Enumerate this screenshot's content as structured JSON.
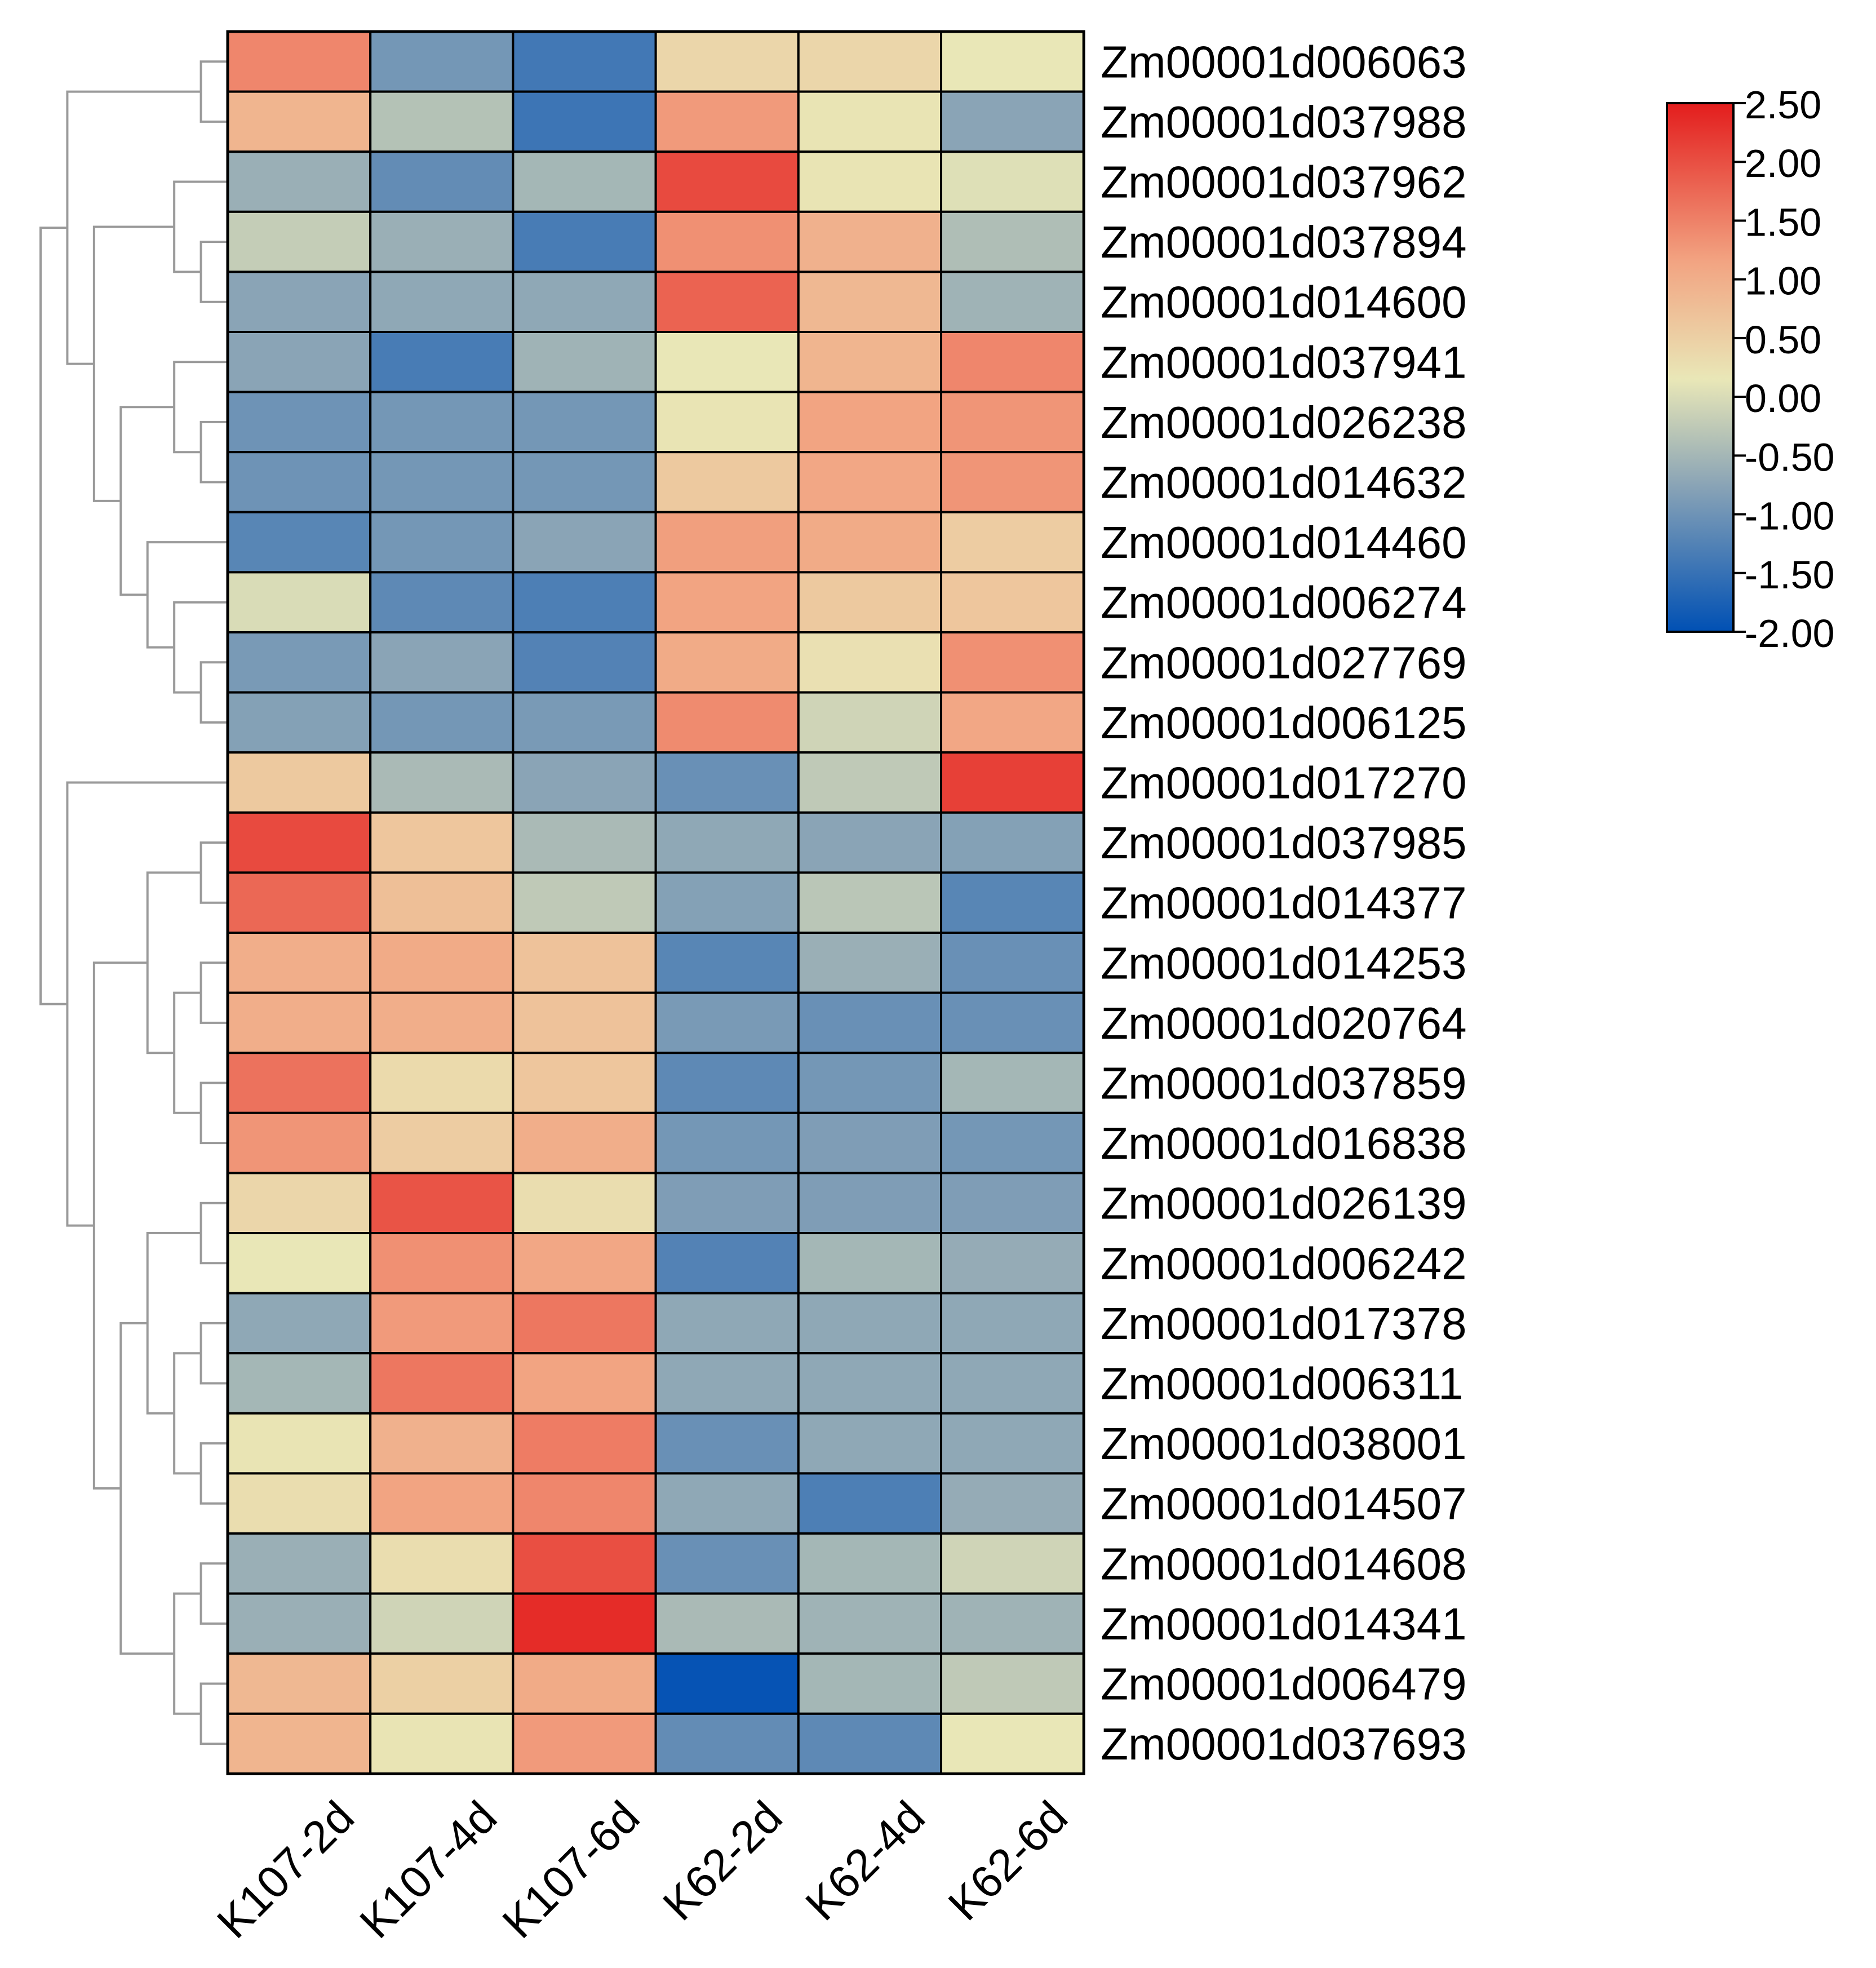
{
  "chart_data": {
    "type": "heatmap",
    "title": "",
    "xlabel": "",
    "ylabel": "",
    "columns": [
      "K107-2d",
      "K107-4d",
      "K107-6d",
      "K62-2d",
      "K62-4d",
      "K62-6d"
    ],
    "rows": [
      "Zm00001d006063",
      "Zm00001d037988",
      "Zm00001d037962",
      "Zm00001d037894",
      "Zm00001d014600",
      "Zm00001d037941",
      "Zm00001d026238",
      "Zm00001d014632",
      "Zm00001d014460",
      "Zm00001d006274",
      "Zm00001d027769",
      "Zm00001d006125",
      "Zm00001d017270",
      "Zm00001d037985",
      "Zm00001d014377",
      "Zm00001d014253",
      "Zm00001d020764",
      "Zm00001d037859",
      "Zm00001d016838",
      "Zm00001d026139",
      "Zm00001d006242",
      "Zm00001d017378",
      "Zm00001d006311",
      "Zm00001d038001",
      "Zm00001d014507",
      "Zm00001d014608",
      "Zm00001d014341",
      "Zm00001d006479",
      "Zm00001d037693"
    ],
    "values": [
      [
        1.45,
        -0.95,
        -1.4,
        0.4,
        0.4,
        0.15
      ],
      [
        0.9,
        -0.35,
        -1.45,
        1.25,
        0.2,
        -0.75
      ],
      [
        -0.6,
        -1.1,
        -0.5,
        2.05,
        0.2,
        0.05
      ],
      [
        -0.2,
        -0.6,
        -1.35,
        1.35,
        0.95,
        -0.4
      ],
      [
        -0.75,
        -0.7,
        -0.7,
        1.8,
        0.85,
        -0.55
      ],
      [
        -0.75,
        -1.35,
        -0.55,
        0.15,
        0.9,
        1.45
      ],
      [
        -1.0,
        -0.95,
        -0.95,
        0.2,
        1.15,
        1.3
      ],
      [
        -1.0,
        -0.95,
        -0.95,
        0.6,
        1.1,
        1.3
      ],
      [
        -1.2,
        -0.95,
        -0.75,
        1.2,
        1.05,
        0.55
      ],
      [
        0.0,
        -1.15,
        -1.3,
        1.15,
        0.6,
        0.65
      ],
      [
        -0.9,
        -0.75,
        -1.25,
        1.05,
        0.25,
        1.35
      ],
      [
        -0.8,
        -0.95,
        -0.9,
        1.4,
        -0.1,
        1.1
      ],
      [
        0.6,
        -0.45,
        -0.75,
        -1.05,
        -0.25,
        2.15
      ],
      [
        2.05,
        0.65,
        -0.45,
        -0.7,
        -0.75,
        -0.8
      ],
      [
        1.75,
        0.75,
        -0.25,
        -0.8,
        -0.3,
        -1.2
      ],
      [
        1.0,
        1.05,
        0.7,
        -1.2,
        -0.6,
        -1.05
      ],
      [
        1.0,
        1.0,
        0.7,
        -0.9,
        -1.05,
        -1.05
      ],
      [
        1.65,
        0.35,
        0.65,
        -1.15,
        -0.95,
        -0.5
      ],
      [
        1.3,
        0.55,
        1.0,
        -0.95,
        -0.85,
        -0.95
      ],
      [
        0.4,
        1.95,
        0.3,
        -0.85,
        -0.85,
        -0.85
      ],
      [
        0.15,
        1.35,
        1.1,
        -1.25,
        -0.5,
        -0.65
      ],
      [
        -0.7,
        1.25,
        1.6,
        -0.7,
        -0.7,
        -0.7
      ],
      [
        -0.5,
        1.6,
        1.15,
        -0.7,
        -0.7,
        -0.7
      ],
      [
        0.2,
        0.95,
        1.55,
        -1.05,
        -0.7,
        -0.7
      ],
      [
        0.3,
        1.15,
        1.45,
        -0.7,
        -1.3,
        -0.65
      ],
      [
        -0.6,
        0.3,
        2.0,
        -1.05,
        -0.5,
        -0.1
      ],
      [
        -0.6,
        -0.1,
        2.35,
        -0.45,
        -0.55,
        -0.55
      ],
      [
        0.85,
        0.5,
        1.05,
        -1.95,
        -0.5,
        -0.25
      ],
      [
        0.9,
        0.2,
        1.25,
        -1.1,
        -1.15,
        0.15
      ]
    ],
    "legend": {
      "position": "top-right",
      "range": [
        -2.0,
        2.5
      ],
      "ticks": [
        "2.50",
        "2.00",
        "1.50",
        "1.00",
        "0.50",
        "0.00",
        "-0.50",
        "-1.00",
        "-1.50",
        "-2.00"
      ],
      "colors": [
        "#0050b4",
        "#8aa4b6",
        "#e9e7b7",
        "#f2a482",
        "#e31d1d"
      ]
    },
    "dendrogram": {
      "position": "left",
      "color": "#9a9a9a",
      "tree": [
        [
          [
            0,
            1
          ],
          [
            [
              2,
              [
                3,
                4
              ]
            ],
            [
              [
                5,
                [
                  6,
                  7
                ]
              ],
              [
                8,
                [
                  9,
                  [
                    10,
                    11
                  ]
                ]
              ]
            ]
          ]
        ],
        [
          12,
          [
            [
              [
                13,
                14
              ],
              [
                [
                  15,
                  16
                ],
                [
                  17,
                  18
                ]
              ]
            ],
            [
              [
                [
                  19,
                  20
                ],
                [
                  [
                    21,
                    22
                  ],
                  [
                    23,
                    24
                  ]
                ]
              ],
              [
                [
                  25,
                  26
                ],
                [
                  27,
                  28
                ]
              ]
            ]
          ]
        ]
      ]
    }
  }
}
